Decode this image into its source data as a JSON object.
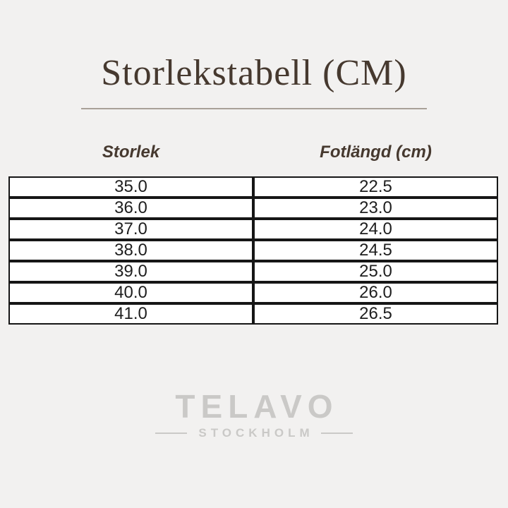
{
  "colors": {
    "page-bg": "#f2f1f0",
    "title-text": "#46392f",
    "title-divider": "#a9a198",
    "table-border": "#161616",
    "cell-bg": "#ffffff",
    "cell-text": "#1e1e1e",
    "brand-gray": "#cac9c7"
  },
  "title": {
    "text": "Storlekstabell (CM)"
  },
  "size_chart": {
    "headers": [
      {
        "label": "Storlek"
      },
      {
        "label": "Fotlängd (cm)"
      }
    ],
    "rows": [
      {
        "size": "35.0",
        "foot_length_cm": "22.5"
      },
      {
        "size": "36.0",
        "foot_length_cm": "23.0"
      },
      {
        "size": "37.0",
        "foot_length_cm": "24.0"
      },
      {
        "size": "38.0",
        "foot_length_cm": "24.5"
      },
      {
        "size": "39.0",
        "foot_length_cm": "25.0"
      },
      {
        "size": "40.0",
        "foot_length_cm": "26.0"
      },
      {
        "size": "41.0",
        "foot_length_cm": "26.5"
      }
    ]
  },
  "brand": {
    "name": "TELAVO",
    "subtitle": "STOCKHOLM"
  }
}
